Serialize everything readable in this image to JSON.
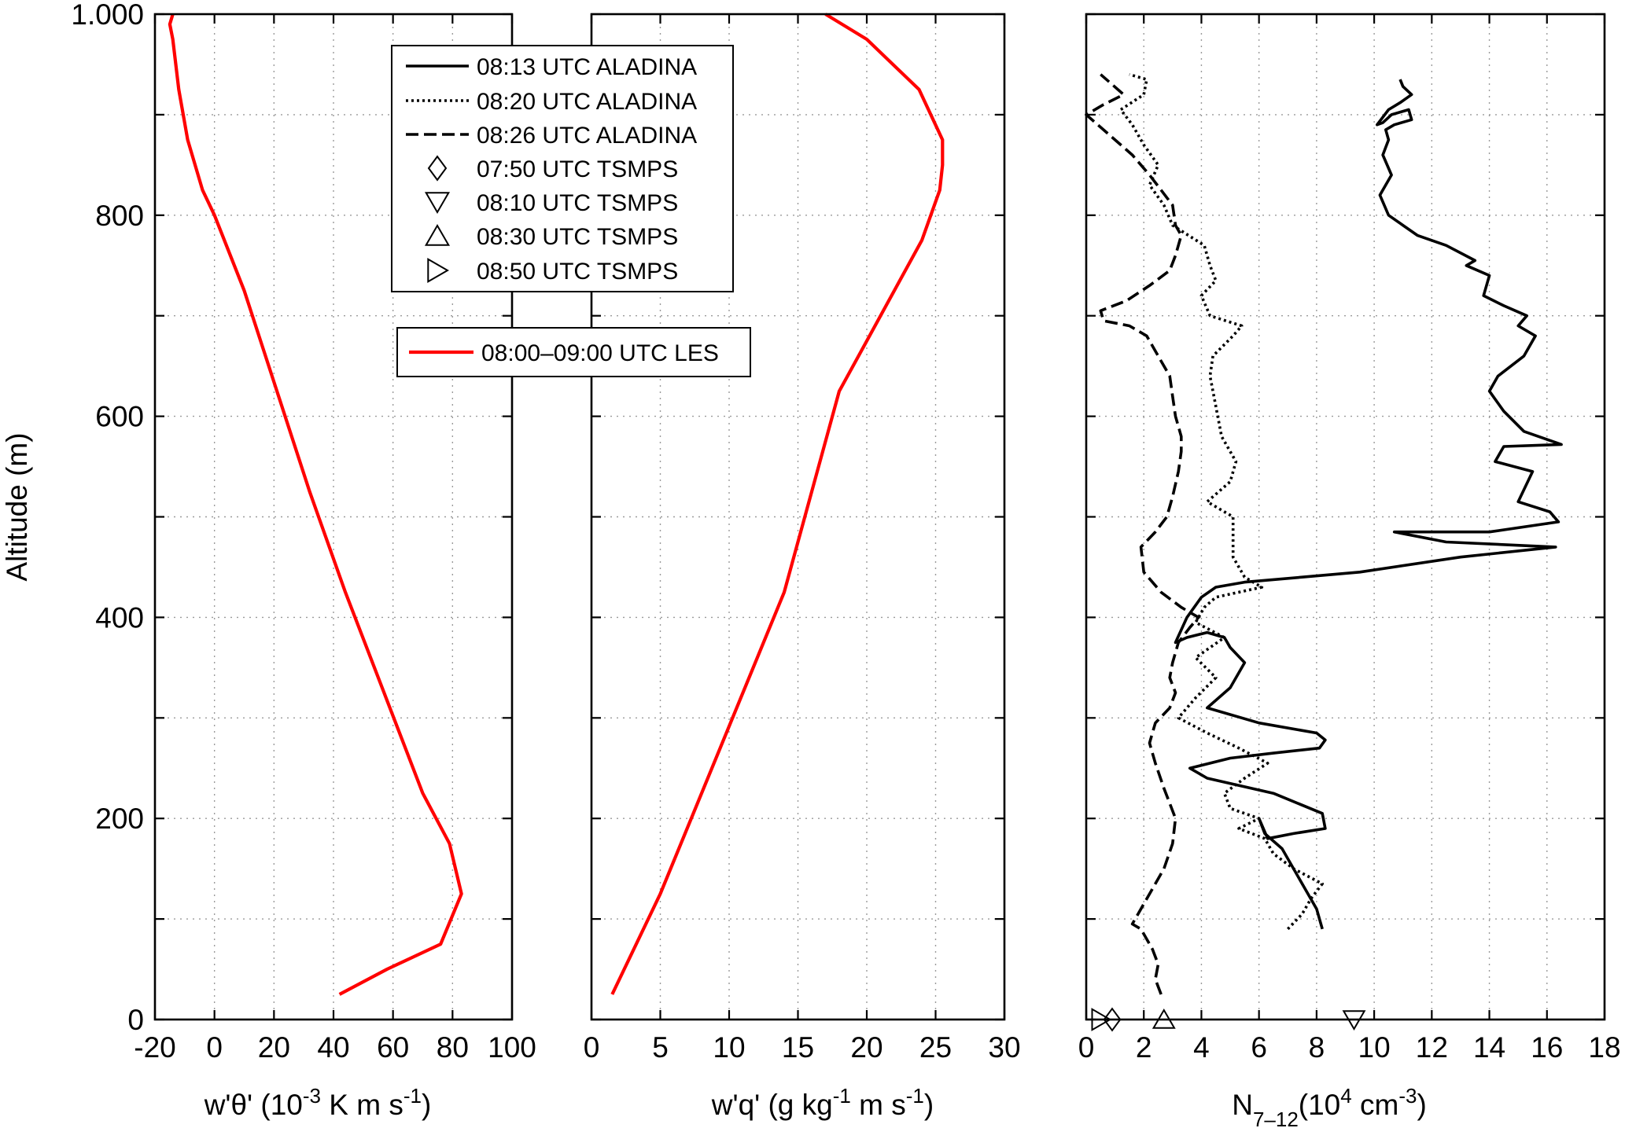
{
  "figure": {
    "ylabel": "Altitude (m)",
    "panel_xlabels": [
      {
        "text": "w'θ' (10",
        "sup": "-3",
        "tail": " K m s",
        "sup2": "-1",
        "end": ")"
      },
      {
        "text": "w'q' (g kg",
        "sup": "-1",
        "tail": " m s",
        "sup2": "-1",
        "end": ")"
      },
      {
        "text": "N",
        "sub": "7–12",
        "tail": "(10",
        "sup2": "4",
        "tail2": " cm",
        "sup3": "-3",
        "end": ")"
      }
    ]
  },
  "legend": {
    "entries": [
      {
        "label": "08:13 UTC ALADINA",
        "style": "solid"
      },
      {
        "label": "08:20 UTC ALADINA",
        "style": "dotted"
      },
      {
        "label": "08:26 UTC ALADINA",
        "style": "dashed"
      },
      {
        "label": "07:50 UTC TSMPS",
        "marker": "diamond"
      },
      {
        "label": "08:10 UTC TSMPS",
        "marker": "triangle-down"
      },
      {
        "label": "08:30 UTC TSMPS",
        "marker": "triangle-up"
      },
      {
        "label": "08:50 UTC TSMPS",
        "marker": "triangle-right"
      }
    ],
    "les_label": "08:00–09:00 UTC LES"
  },
  "colors": {
    "les": "#ff0000",
    "aladina": "#000000"
  },
  "chart_data": [
    {
      "type": "line",
      "xlabel": "w'θ' (10^-3 K m s^-1)",
      "ylabel": "Altitude (m)",
      "xlim": [
        -20,
        100
      ],
      "ylim": [
        0,
        1000
      ],
      "xticks": [
        -20,
        0,
        20,
        40,
        60,
        80,
        100
      ],
      "yticks": [
        0,
        200,
        400,
        600,
        800,
        1000
      ],
      "yticklabels": [
        "0",
        "200",
        "400",
        "600",
        "800",
        "1.000"
      ],
      "grid": true,
      "series": [
        {
          "name": "08:00–09:00 UTC LES",
          "color": "#ff0000",
          "x": [
            42,
            58,
            76,
            83,
            79,
            70,
            57,
            44,
            32,
            21,
            10,
            0,
            -4,
            -9,
            -12,
            -14,
            -15,
            -14
          ],
          "y": [
            25,
            50,
            75,
            125,
            175,
            225,
            325,
            425,
            525,
            625,
            725,
            800,
            825,
            875,
            925,
            975,
            990,
            1000
          ]
        }
      ]
    },
    {
      "type": "line",
      "xlabel": "w'q' (g kg^-1 m s^-1)",
      "ylabel": "",
      "xlim": [
        0,
        30
      ],
      "ylim": [
        0,
        1000
      ],
      "xticks": [
        0,
        5,
        10,
        15,
        20,
        25,
        30
      ],
      "grid": true,
      "series": [
        {
          "name": "08:00–09:00 UTC LES",
          "color": "#ff0000",
          "x": [
            1.5,
            5,
            8,
            11,
            14,
            16,
            18,
            20,
            22,
            24,
            25.3,
            25.5,
            25.5,
            23.8,
            20,
            17
          ],
          "y": [
            25,
            125,
            225,
            325,
            425,
            525,
            625,
            675,
            725,
            775,
            825,
            850,
            875,
            925,
            975,
            1000
          ]
        }
      ]
    },
    {
      "type": "line",
      "xlabel": "N_7–12 (10^4 cm^-3)",
      "ylabel": "",
      "xlim": [
        0,
        18
      ],
      "ylim": [
        0,
        1000
      ],
      "xticks": [
        0,
        2,
        4,
        6,
        8,
        10,
        12,
        14,
        16,
        18
      ],
      "grid": true,
      "series": [
        {
          "name": "08:13 UTC ALADINA",
          "style": "solid",
          "color": "#000000",
          "x": [
            8.2,
            8.0,
            7.4,
            6.8,
            6.2,
            6.0,
            6.3,
            7.2,
            8.3,
            8.2,
            6.5,
            4.2,
            3.6,
            5.0,
            6.5,
            8.1,
            8.3,
            8.0,
            6.0,
            4.2,
            5.0,
            5.5,
            5.0,
            4.8,
            4.2,
            3.5,
            3.1,
            3.5,
            4.0,
            4.5,
            5.5,
            7.5,
            9.5,
            13.0,
            16.3,
            12.5,
            10.7,
            14.0,
            16.4,
            16.1,
            15.0,
            15.5,
            14.2,
            14.5,
            16.5,
            15.2,
            14.5,
            14.0,
            14.3,
            15.2,
            15.6,
            15.0,
            15.3,
            14.5,
            13.8,
            14.0,
            13.2,
            13.5,
            12.5,
            11.5,
            11.0,
            10.5,
            10.2,
            10.6,
            10.3,
            10.5,
            10.4,
            10.7,
            11.3,
            11.2,
            10.6,
            10.3,
            10.1,
            10.5,
            10.9,
            11.3,
            11.0,
            10.9
          ],
          "y": [
            90,
            110,
            140,
            170,
            185,
            200,
            180,
            185,
            190,
            205,
            225,
            240,
            250,
            260,
            265,
            270,
            278,
            285,
            295,
            310,
            330,
            355,
            370,
            380,
            385,
            380,
            375,
            400,
            420,
            430,
            435,
            440,
            445,
            460,
            470,
            475,
            485,
            485,
            495,
            505,
            515,
            545,
            555,
            570,
            572,
            585,
            605,
            625,
            640,
            660,
            680,
            690,
            700,
            710,
            720,
            740,
            750,
            755,
            770,
            780,
            790,
            800,
            820,
            840,
            860,
            875,
            885,
            890,
            895,
            905,
            900,
            892,
            890,
            905,
            912,
            920,
            928,
            935
          ]
        },
        {
          "name": "08:20 UTC ALADINA",
          "style": "dotted",
          "color": "#000000",
          "x": [
            7.0,
            7.5,
            7.8,
            8.2,
            7.2,
            6.5,
            6.2,
            5.3,
            6.0,
            5.0,
            4.8,
            5.5,
            6.3,
            5.3,
            4.2,
            3.2,
            3.8,
            4.5,
            3.8,
            4.8,
            3.8,
            4.1,
            4.5,
            6.1,
            5.5,
            5.1,
            5.1,
            4.2,
            5.0,
            5.2,
            4.7,
            4.5,
            4.3,
            4.4,
            5.1,
            5.4,
            4.3,
            4.0,
            4.5,
            4.3,
            4.1,
            3.0,
            2.7,
            2.2,
            2.5,
            2.0,
            1.6,
            1.2,
            2.0,
            2.1,
            1.5
          ],
          "y": [
            90,
            105,
            120,
            135,
            150,
            165,
            180,
            190,
            200,
            210,
            225,
            240,
            255,
            270,
            285,
            300,
            320,
            340,
            360,
            380,
            395,
            410,
            420,
            430,
            440,
            460,
            500,
            515,
            535,
            555,
            580,
            610,
            640,
            660,
            680,
            690,
            700,
            720,
            735,
            750,
            770,
            790,
            810,
            830,
            850,
            870,
            890,
            905,
            920,
            935,
            940
          ]
        },
        {
          "name": "08:26 UTC ALADINA",
          "style": "dashed",
          "color": "#000000",
          "x": [
            2.6,
            2.4,
            2.5,
            2.3,
            1.9,
            1.6,
            2.1,
            2.7,
            3.0,
            3.1,
            2.9,
            2.7,
            2.4,
            2.2,
            2.3,
            2.4,
            2.9,
            3.1,
            2.9,
            3.0,
            3.2,
            3.6,
            3.9,
            3.3,
            2.6,
            2.0,
            1.9,
            2.4,
            2.8,
            3.0,
            3.2,
            3.3,
            3.3,
            3.1,
            3.0,
            2.9,
            2.5,
            2.1,
            1.5,
            0.6,
            0.5,
            1.4,
            2.2,
            2.9,
            3.1,
            3.3,
            3.1,
            3.0,
            2.6,
            2.2,
            1.6,
            0.8,
            0.0,
            0.6,
            1.3,
            0.9,
            0.5
          ],
          "y": [
            25,
            40,
            55,
            70,
            90,
            95,
            120,
            150,
            175,
            200,
            215,
            230,
            255,
            275,
            285,
            295,
            310,
            325,
            340,
            355,
            375,
            390,
            400,
            410,
            425,
            445,
            470,
            485,
            500,
            520,
            545,
            565,
            580,
            600,
            620,
            640,
            660,
            680,
            690,
            695,
            705,
            715,
            730,
            745,
            760,
            780,
            790,
            810,
            825,
            840,
            860,
            880,
            900,
            910,
            920,
            930,
            940
          ]
        }
      ],
      "markers": [
        {
          "name": "07:50 UTC TSMPS",
          "marker": "diamond",
          "x": 0.9,
          "y": 0
        },
        {
          "name": "08:10 UTC TSMPS",
          "marker": "triangle-down",
          "x": 9.3,
          "y": 0
        },
        {
          "name": "08:30 UTC TSMPS",
          "marker": "triangle-up",
          "x": 2.7,
          "y": 0
        },
        {
          "name": "08:50 UTC TSMPS",
          "marker": "triangle-right",
          "x": 0.5,
          "y": 0
        }
      ]
    }
  ]
}
